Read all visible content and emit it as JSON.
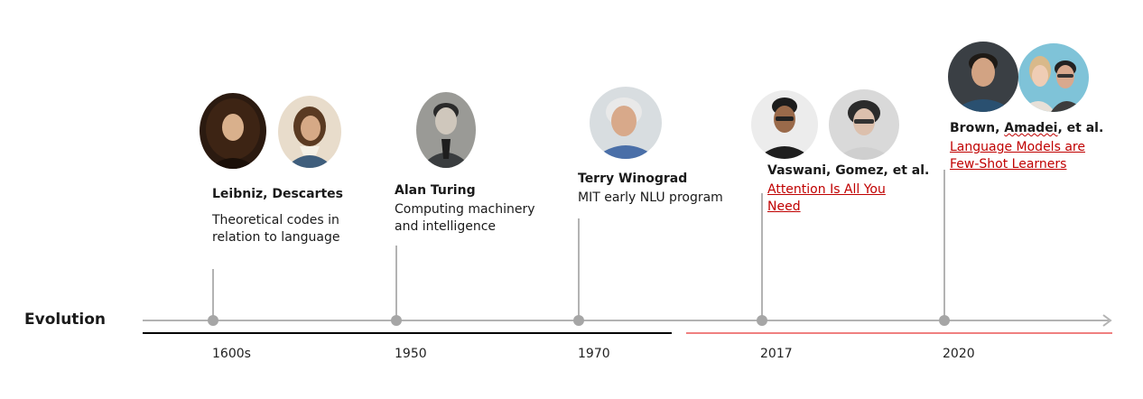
{
  "row_label": "Evolution",
  "milestones": [
    {
      "year": "1600s",
      "name": "Leibniz, Descartes",
      "desc_line1": "Theoretical codes in",
      "desc_line2": "relation to language"
    },
    {
      "year": "1950",
      "name": "Alan Turing",
      "desc_line1": "Computing machinery",
      "desc_line2": "and intelligence"
    },
    {
      "year": "1970",
      "name": "Terry Winograd",
      "desc_line1": "MIT early NLU program"
    },
    {
      "year": "2017",
      "name": "Vaswani, Gomez, et al.",
      "link_line1": "Attention Is All You",
      "link_line2": "Need"
    },
    {
      "year": "2020",
      "name_a": "Brown, ",
      "name_b": "Amadei",
      "name_c": ", et al.",
      "link_line1": "Language Models are",
      "link_line2": "Few-Shot Learners"
    }
  ],
  "colors": {
    "axis": "#b3b3b3",
    "dot": "#a6a6a6",
    "past_bar": "#000000",
    "modern_bar": "#f08080",
    "link": "#c00000"
  }
}
